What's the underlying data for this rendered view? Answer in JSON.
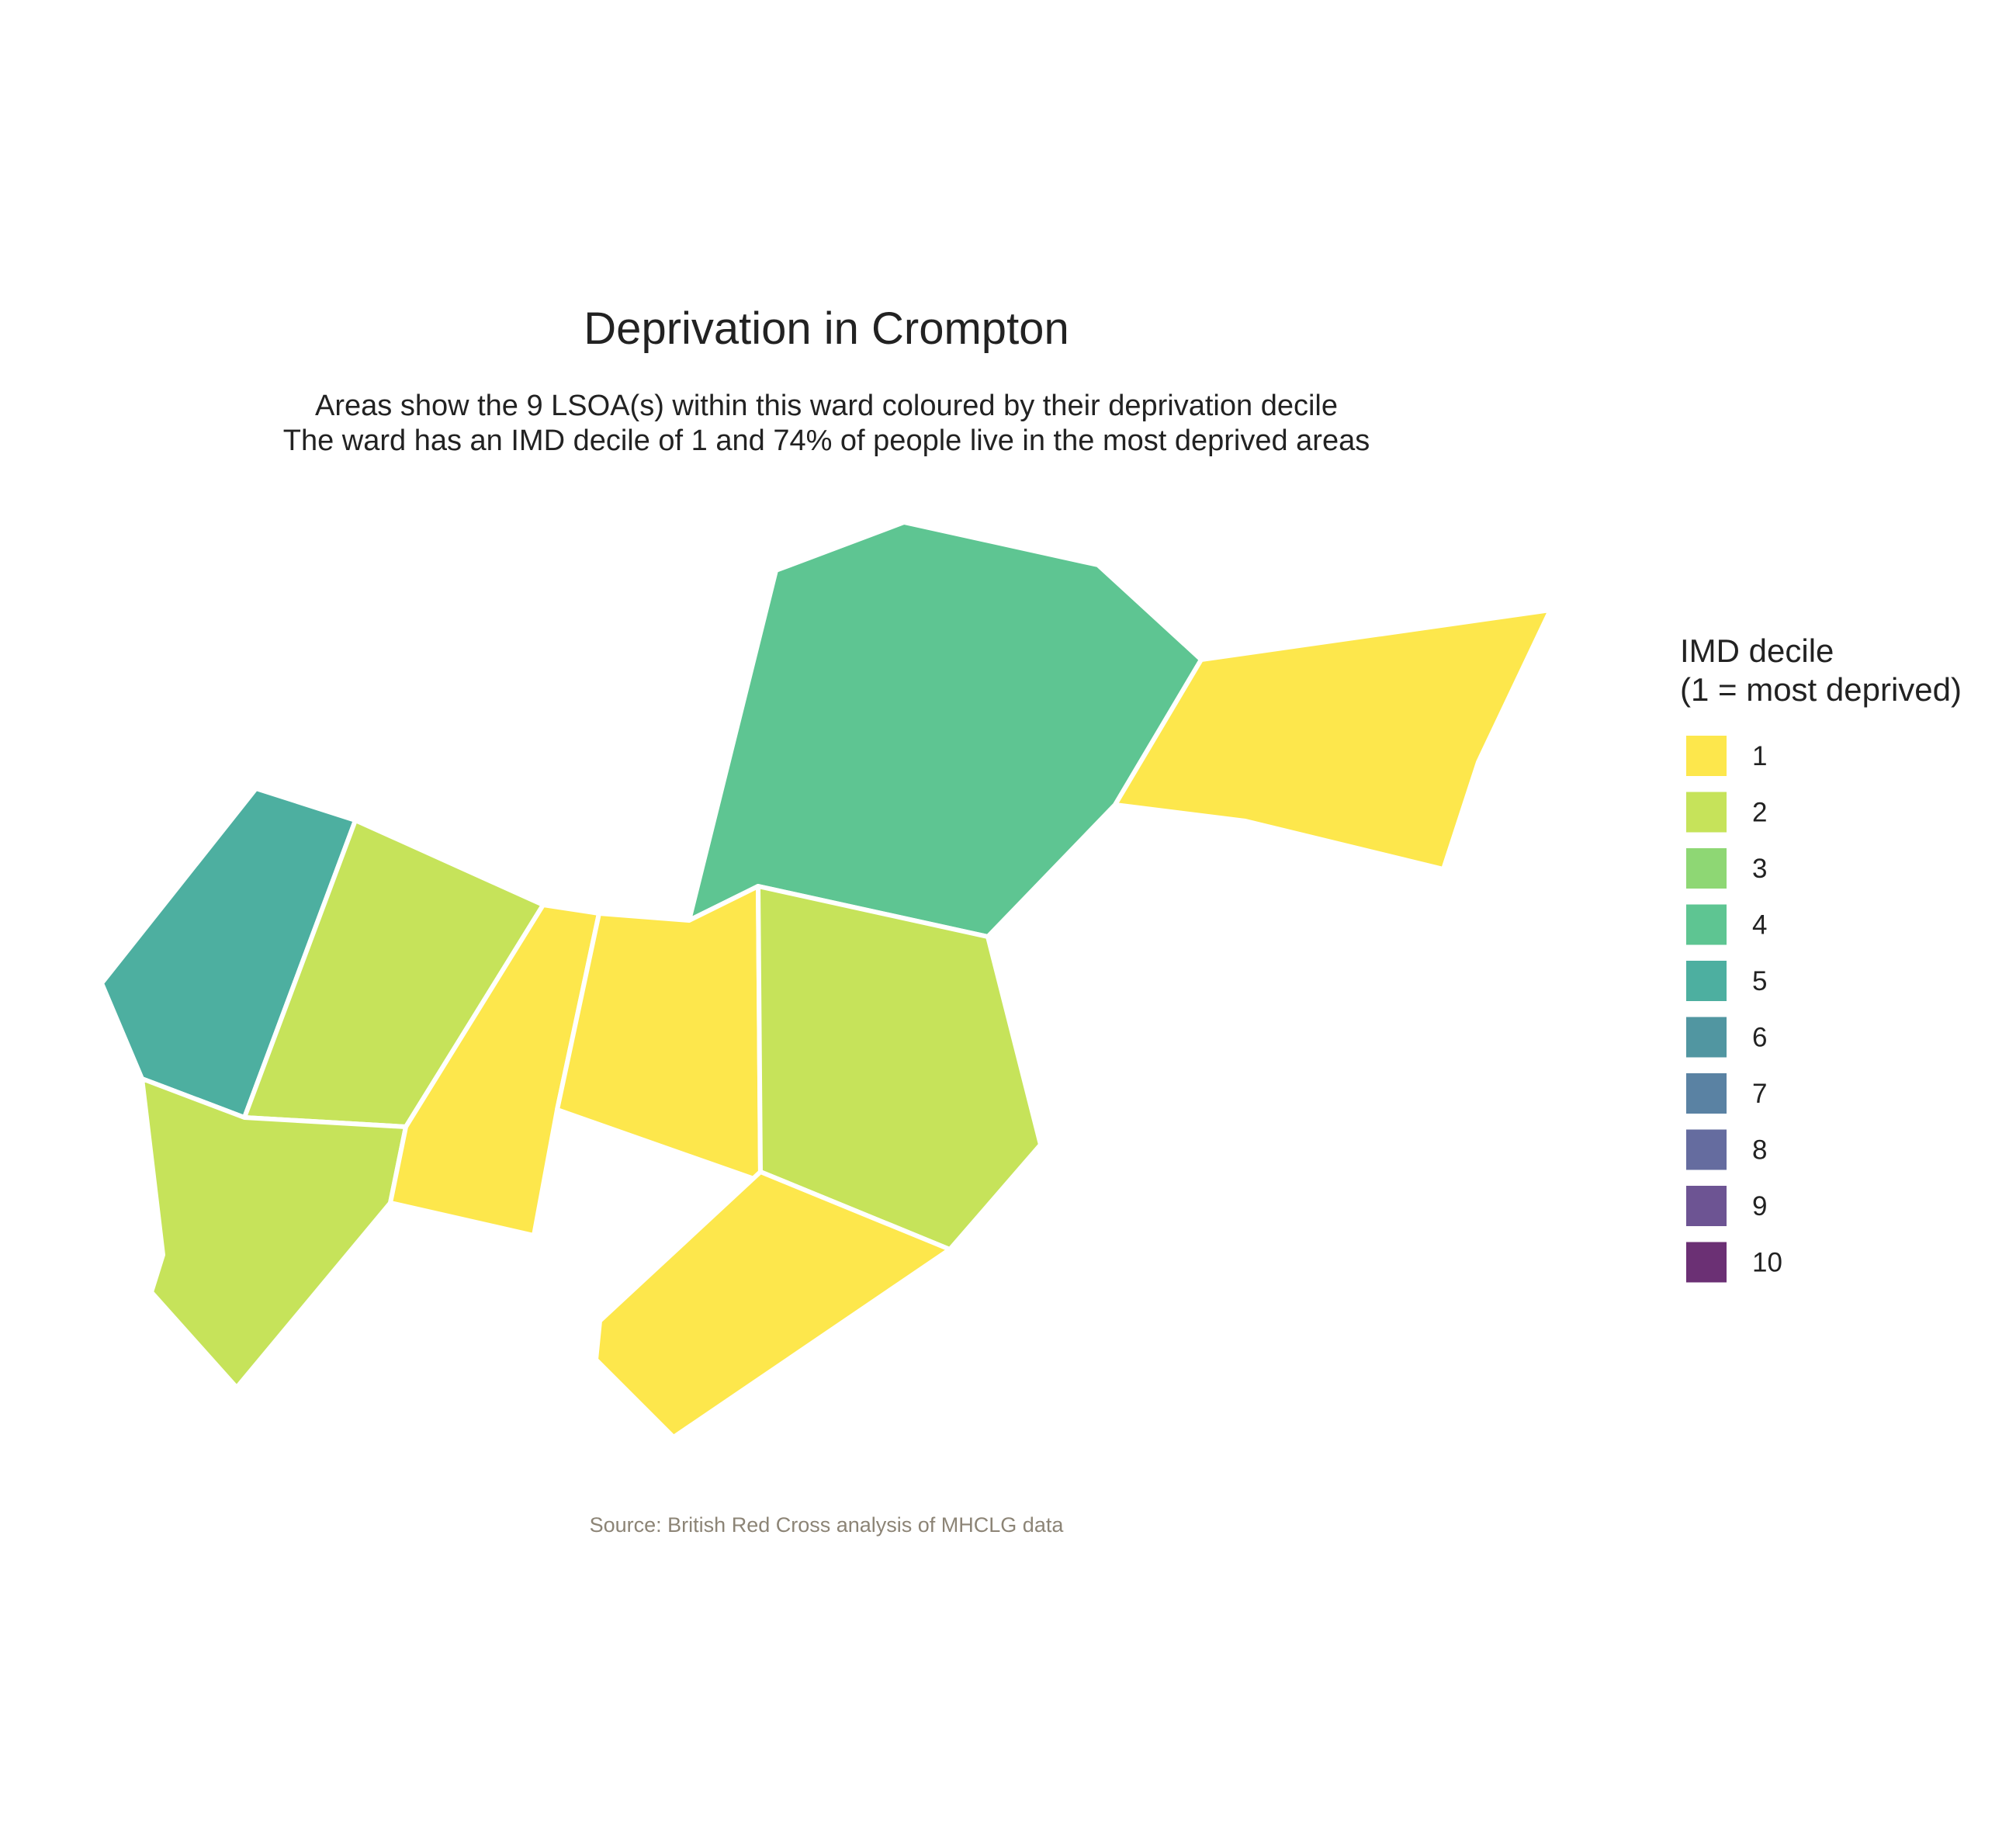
{
  "title": "Deprivation in Crompton",
  "subtitle_lines": [
    "Areas show the 9 LSOA(s) within this ward coloured by their deprivation decile",
    "The ward has an IMD decile of 1 and 74% of people live in the most deprived areas"
  ],
  "caption": "Source: British Red Cross analysis of MHCLG data",
  "legend": {
    "title_lines": [
      "IMD decile",
      "(1 = most deprived)"
    ],
    "items": [
      {
        "label": "1",
        "color": "#FDE74C"
      },
      {
        "label": "2",
        "color": "#C6E35A"
      },
      {
        "label": "3",
        "color": "#8ED774"
      },
      {
        "label": "4",
        "color": "#5EC592"
      },
      {
        "label": "5",
        "color": "#4DAFA0"
      },
      {
        "label": "6",
        "color": "#5196A1"
      },
      {
        "label": "7",
        "color": "#5A82A3"
      },
      {
        "label": "8",
        "color": "#656C9F"
      },
      {
        "label": "9",
        "color": "#6D5493"
      },
      {
        "label": "10",
        "color": "#6B3074"
      }
    ]
  },
  "areas": [
    {
      "id": "north-east-large",
      "decile": 4
    },
    {
      "id": "far-east",
      "decile": 1
    },
    {
      "id": "far-west",
      "decile": 5
    },
    {
      "id": "west-centre",
      "decile": 2
    },
    {
      "id": "south-west",
      "decile": 2
    },
    {
      "id": "west-strip",
      "decile": 1
    },
    {
      "id": "centre",
      "decile": 1
    },
    {
      "id": "centre-south",
      "decile": 2
    },
    {
      "id": "south",
      "decile": 1
    }
  ]
}
